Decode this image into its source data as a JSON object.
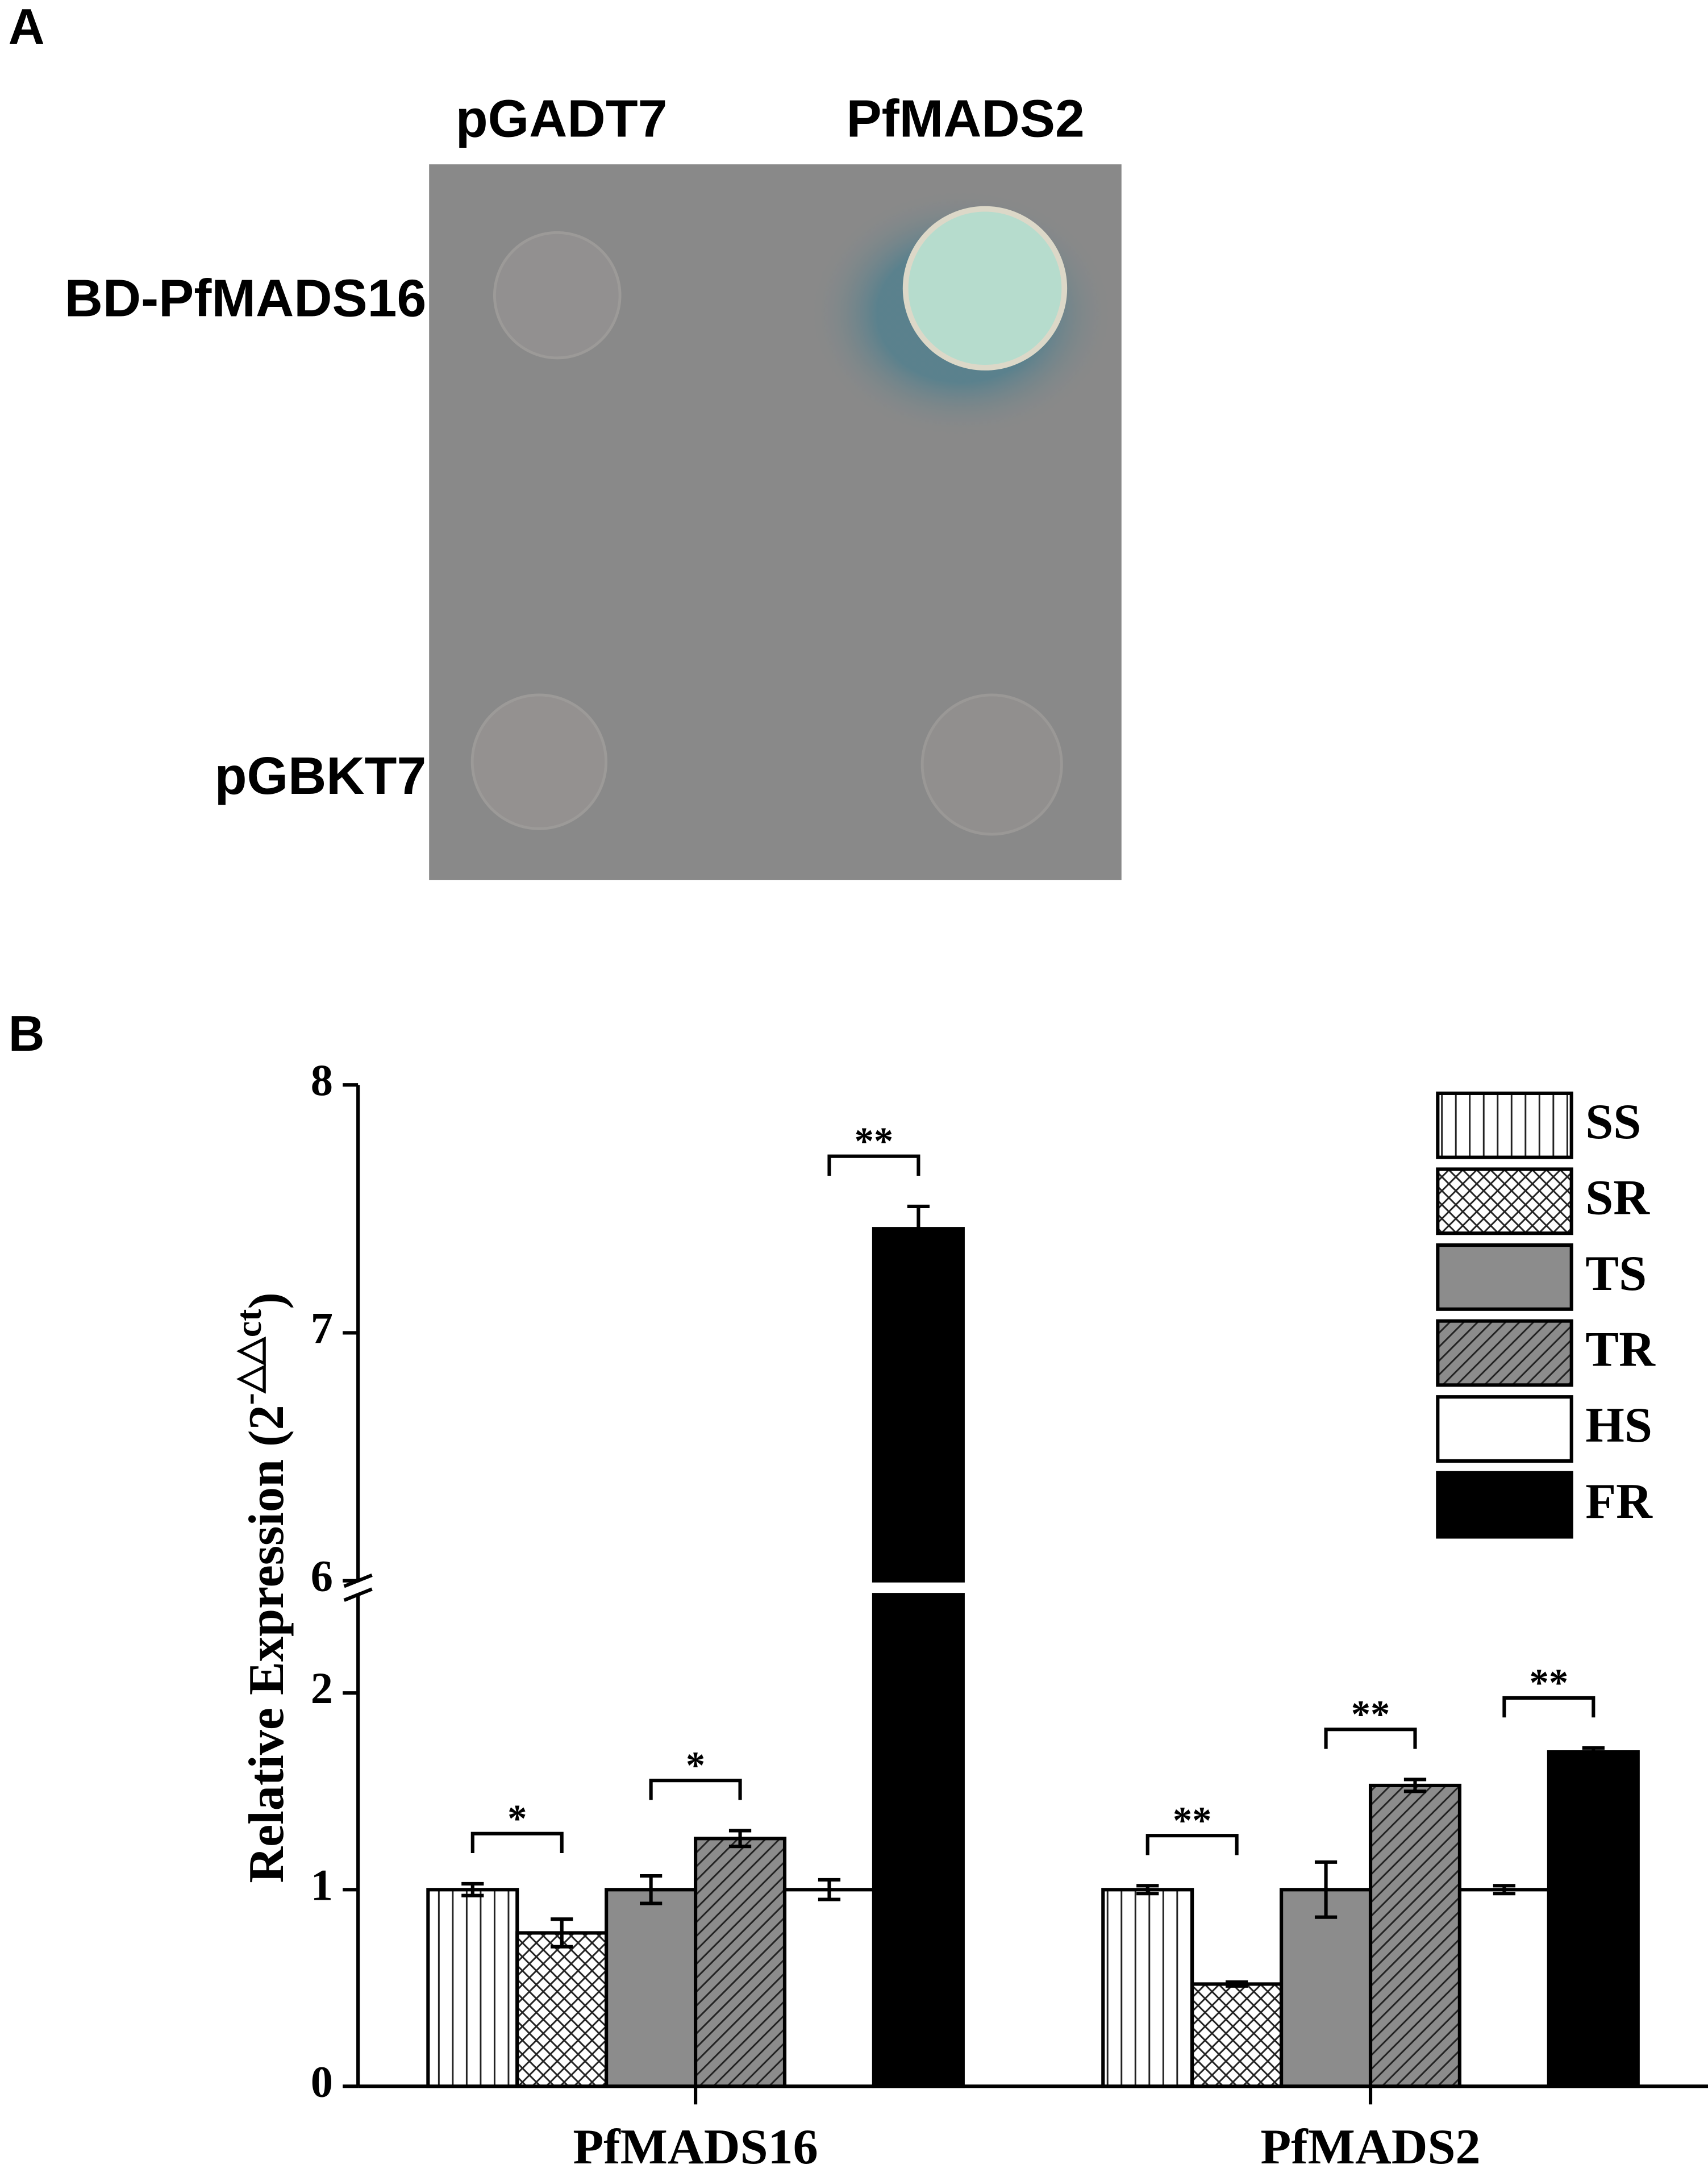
{
  "panel_a": {
    "label": "A",
    "columns": [
      "pGADT7",
      "PfMADS2"
    ],
    "rows": [
      "BD-PfMADS16",
      "pGBKT7"
    ]
  },
  "chart_data": {
    "type": "bar",
    "panel_label": "B",
    "ylabel": "Relative Expression (2",
    "ylabel_sup": "-△△ct",
    "ylabel_end": ")",
    "categories": [
      "PfMADS16",
      "PfMADS2"
    ],
    "y_segments": [
      {
        "ylim": [
          0,
          2.5
        ],
        "yticks": [
          0,
          1,
          2
        ]
      },
      {
        "ylim": [
          6,
          8
        ],
        "yticks": [
          6,
          7,
          8
        ]
      }
    ],
    "series": [
      {
        "name": "SS",
        "color": "#ffffff",
        "pattern": "vertical",
        "values": [
          1,
          1
        ],
        "errors": [
          0.03,
          0.02
        ]
      },
      {
        "name": "SR",
        "color": "#ffffff",
        "pattern": "crosshatch",
        "values": [
          0.78,
          0.52
        ],
        "errors": [
          0.07,
          0.01
        ]
      },
      {
        "name": "TS",
        "color": "#8c8c8c",
        "pattern": "solid",
        "values": [
          1,
          1
        ],
        "errors": [
          0.07,
          0.14
        ]
      },
      {
        "name": "TR",
        "color": "#8c8c8c",
        "pattern": "diagonal",
        "values": [
          1.26,
          1.53
        ],
        "errors": [
          0.04,
          0.03
        ]
      },
      {
        "name": "HS",
        "color": "#ffffff",
        "pattern": "solid",
        "values": [
          1,
          1
        ],
        "errors": [
          0.05,
          0.02
        ]
      },
      {
        "name": "FR",
        "color": "#000000",
        "pattern": "solid",
        "values": [
          7.42,
          1.7
        ],
        "errors": [
          0.09,
          0.02
        ]
      }
    ],
    "annotations": [
      {
        "category": "PfMADS16",
        "series": [
          "SS",
          "SR"
        ],
        "label": "*"
      },
      {
        "category": "PfMADS16",
        "series": [
          "TS",
          "TR"
        ],
        "label": "*"
      },
      {
        "category": "PfMADS16",
        "series": [
          "HS",
          "FR"
        ],
        "label": "**"
      },
      {
        "category": "PfMADS2",
        "series": [
          "SS",
          "SR"
        ],
        "label": "**"
      },
      {
        "category": "PfMADS2",
        "series": [
          "TS",
          "TR"
        ],
        "label": "**"
      },
      {
        "category": "PfMADS2",
        "series": [
          "HS",
          "FR"
        ],
        "label": "**"
      }
    ],
    "legend": "top-right"
  }
}
